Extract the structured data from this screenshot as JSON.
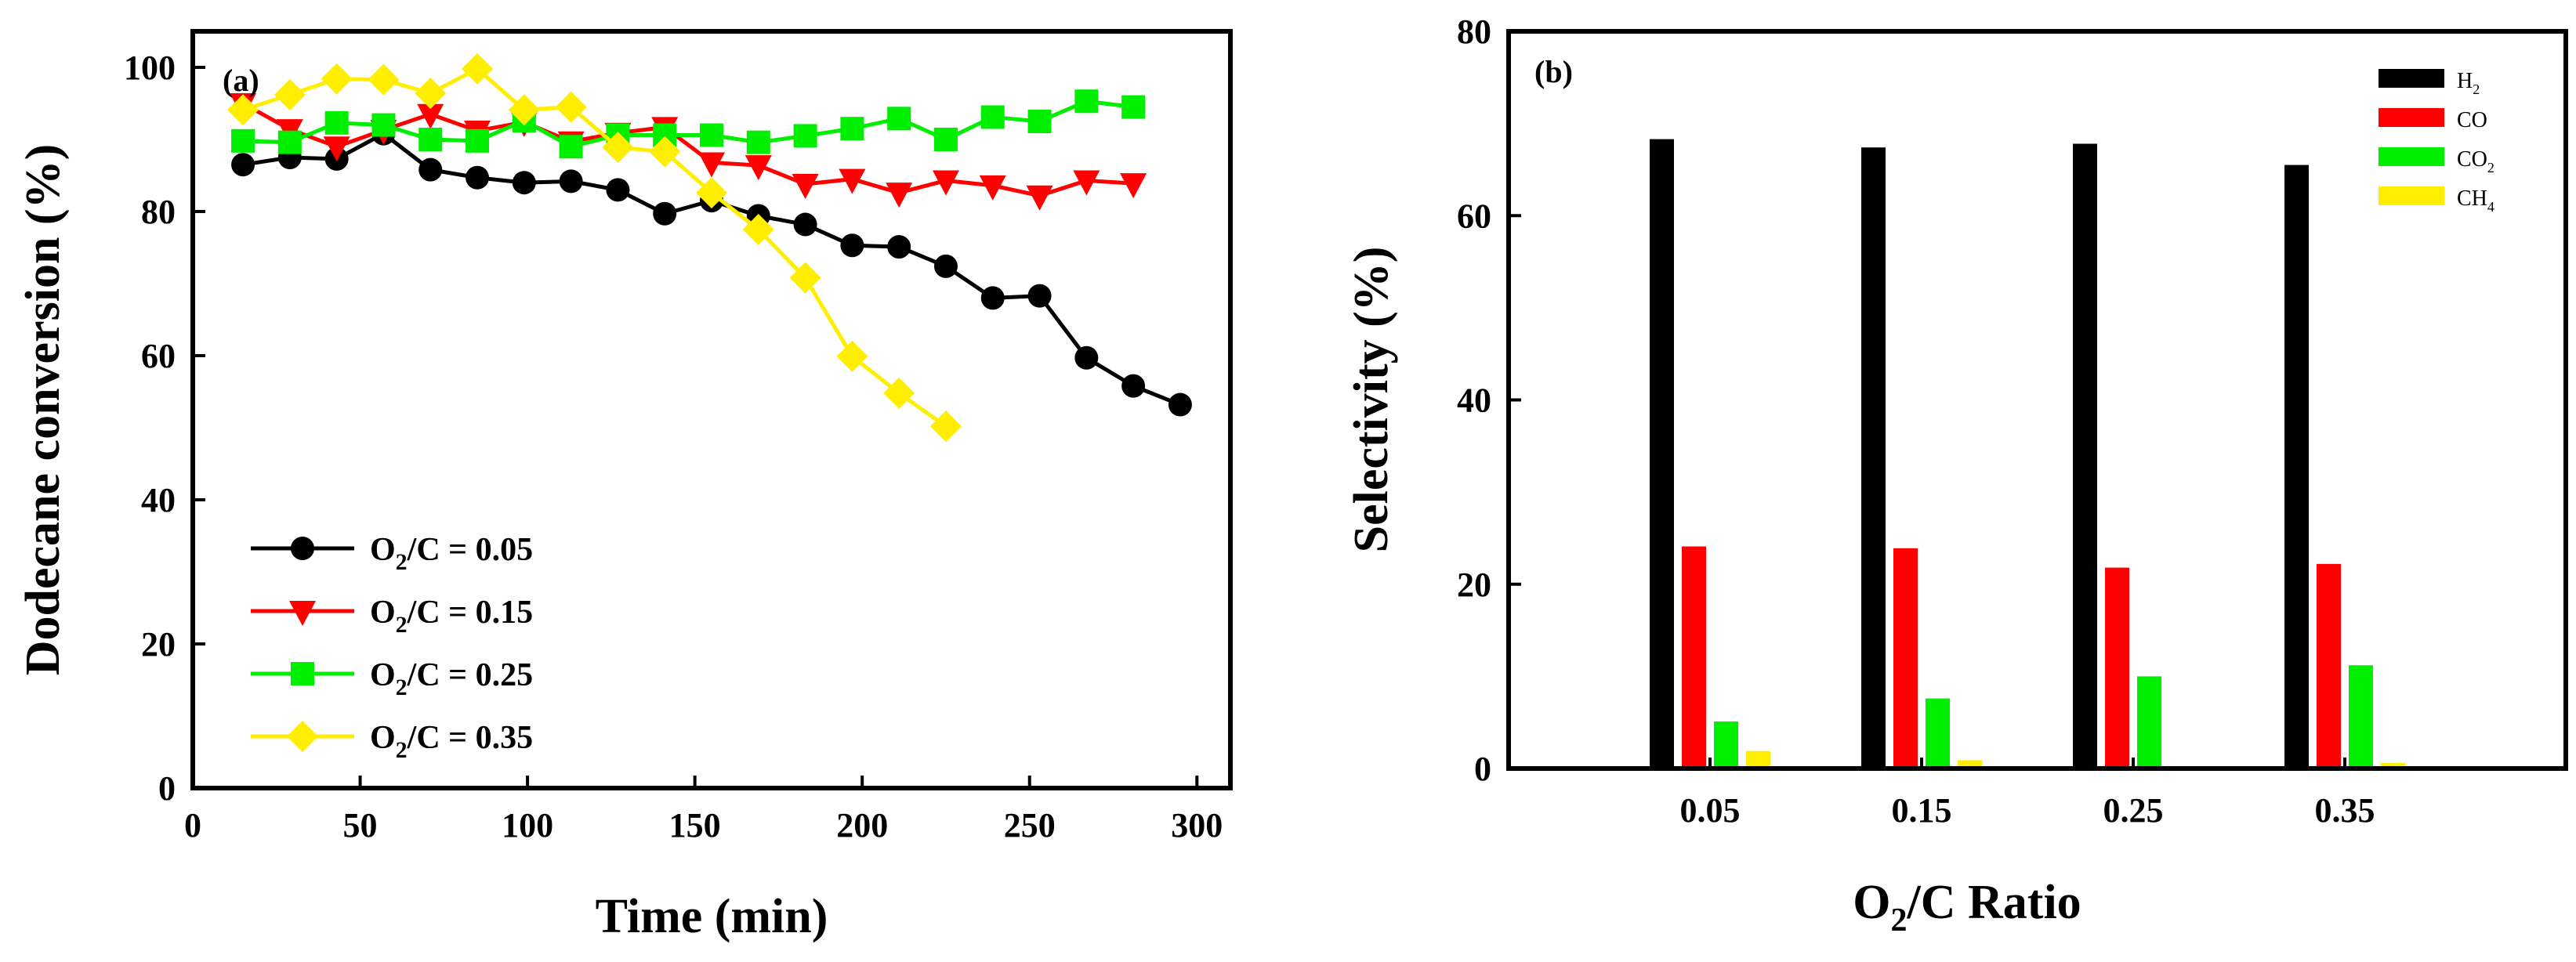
{
  "chart_data": [
    {
      "panel": "(a)",
      "type": "line",
      "xlabel": "Time (min)",
      "ylabel": "Dodecane conversion (%)",
      "xlim": [
        0,
        310
      ],
      "ylim": [
        0,
        105
      ],
      "xticks": [
        0,
        50,
        100,
        150,
        200,
        250,
        300
      ],
      "yticks": [
        0,
        20,
        40,
        60,
        80,
        100
      ],
      "legend_position": "bottom-left",
      "series": [
        {
          "name_parts": [
            "O",
            "2",
            "/C = 0.05"
          ],
          "color": "#000000",
          "marker": "circle",
          "x": [
            15,
            29,
            43,
            57,
            71,
            85,
            99,
            113,
            127,
            141,
            155,
            169,
            183,
            197,
            211,
            225,
            239,
            253,
            267,
            281,
            295
          ],
          "y": [
            86.5,
            87.5,
            87.3,
            90.8,
            85.8,
            84.7,
            84.0,
            84.2,
            83.0,
            79.7,
            81.5,
            79.4,
            78.2,
            75.3,
            75.1,
            72.4,
            68.0,
            68.3,
            59.7,
            55.8,
            53.2
          ]
        },
        {
          "name_parts": [
            "O",
            "2",
            "/C = 0.15"
          ],
          "color": "#ff0000",
          "marker": "triangle-down",
          "x": [
            15,
            29,
            43,
            57,
            71,
            85,
            99,
            113,
            127,
            141,
            155,
            169,
            183,
            197,
            211,
            225,
            239,
            253,
            267,
            281
          ],
          "y": [
            95.0,
            91.4,
            89.0,
            91.3,
            93.5,
            91.2,
            92.4,
            89.7,
            90.9,
            91.7,
            86.8,
            86.4,
            83.8,
            84.5,
            82.6,
            84.3,
            83.6,
            82.2,
            84.3,
            83.9
          ]
        },
        {
          "name_parts": [
            "O",
            "2",
            "/C = 0.25"
          ],
          "color": "#00ee00",
          "marker": "square",
          "x": [
            15,
            29,
            43,
            57,
            71,
            85,
            99,
            113,
            127,
            141,
            155,
            169,
            183,
            197,
            211,
            225,
            239,
            253,
            267,
            281
          ],
          "y": [
            89.8,
            89.6,
            92.3,
            92.0,
            90.0,
            89.8,
            92.6,
            89.0,
            90.6,
            90.6,
            90.6,
            89.6,
            90.5,
            91.5,
            92.9,
            90.0,
            93.1,
            92.5,
            95.3,
            94.5
          ]
        },
        {
          "name_parts": [
            "O",
            "2",
            "/C = 0.35"
          ],
          "color": "#ffee00",
          "marker": "diamond",
          "x": [
            15,
            29,
            43,
            57,
            71,
            85,
            99,
            113,
            127,
            141,
            155,
            169,
            183,
            197,
            211,
            225
          ],
          "y": [
            94.1,
            96.2,
            98.4,
            98.3,
            96.4,
            99.8,
            94.1,
            94.5,
            88.9,
            88.3,
            82.6,
            77.5,
            70.8,
            59.9,
            54.8,
            50.2
          ]
        }
      ]
    },
    {
      "panel": "(b)",
      "type": "bar",
      "xlabel_parts": [
        "O",
        "2",
        "/C Ratio"
      ],
      "ylabel": "Selectivity (%)",
      "ylim": [
        0,
        80
      ],
      "yticks": [
        0,
        20,
        40,
        60,
        80
      ],
      "categories": [
        "0.05",
        "0.15",
        "0.25",
        "0.35"
      ],
      "legend_position": "top-right",
      "series": [
        {
          "name": "H",
          "sub": "2",
          "color": "#000000",
          "values": [
            68.3,
            67.4,
            67.8,
            65.5
          ]
        },
        {
          "name": "CO",
          "sub": "",
          "color": "#ff0000",
          "values": [
            24.1,
            23.9,
            21.8,
            22.2
          ]
        },
        {
          "name": "CO",
          "sub": "2",
          "color": "#00ee00",
          "values": [
            5.1,
            7.6,
            10.0,
            11.2
          ]
        },
        {
          "name": "CH",
          "sub": "4",
          "color": "#ffee00",
          "values": [
            1.9,
            0.9,
            0.0,
            0.6
          ]
        }
      ]
    }
  ]
}
